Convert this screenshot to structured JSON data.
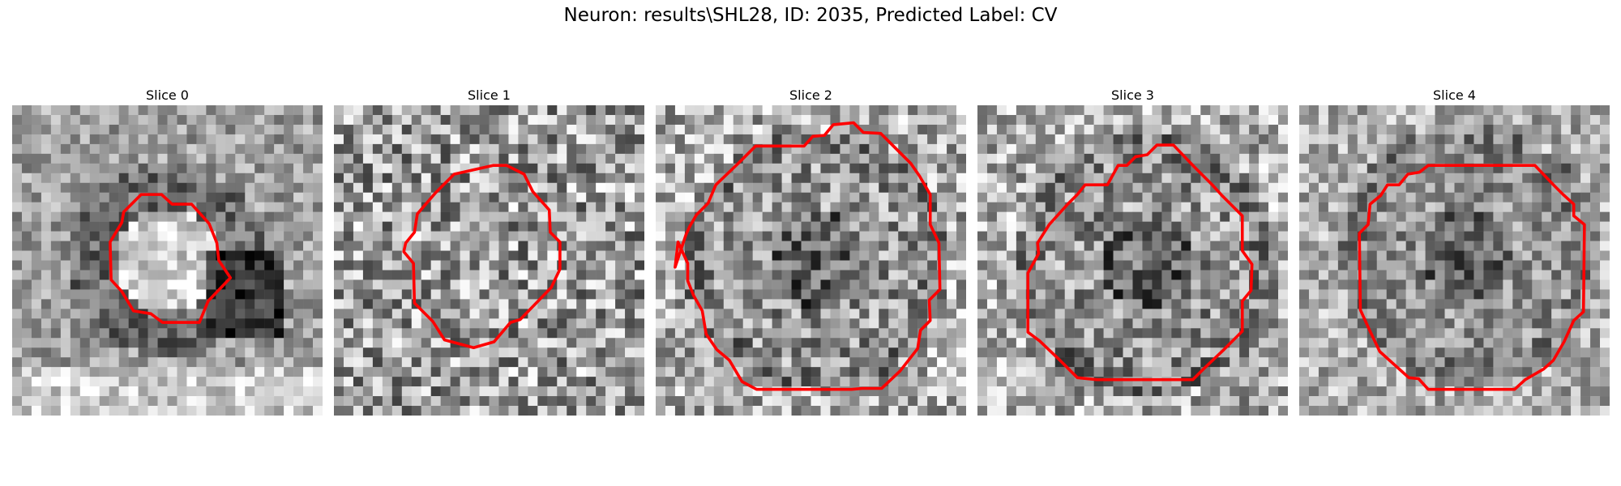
{
  "figure": {
    "title": "Neuron: results\\SHL28, ID: 2035, Predicted Label: CV"
  },
  "panels": [
    {
      "title": "Slice 0"
    },
    {
      "title": "Slice 1"
    },
    {
      "title": "Slice 2"
    },
    {
      "title": "Slice 3"
    },
    {
      "title": "Slice 4"
    }
  ],
  "colors": {
    "contour": "#ff0000",
    "colormap": "gray"
  }
}
